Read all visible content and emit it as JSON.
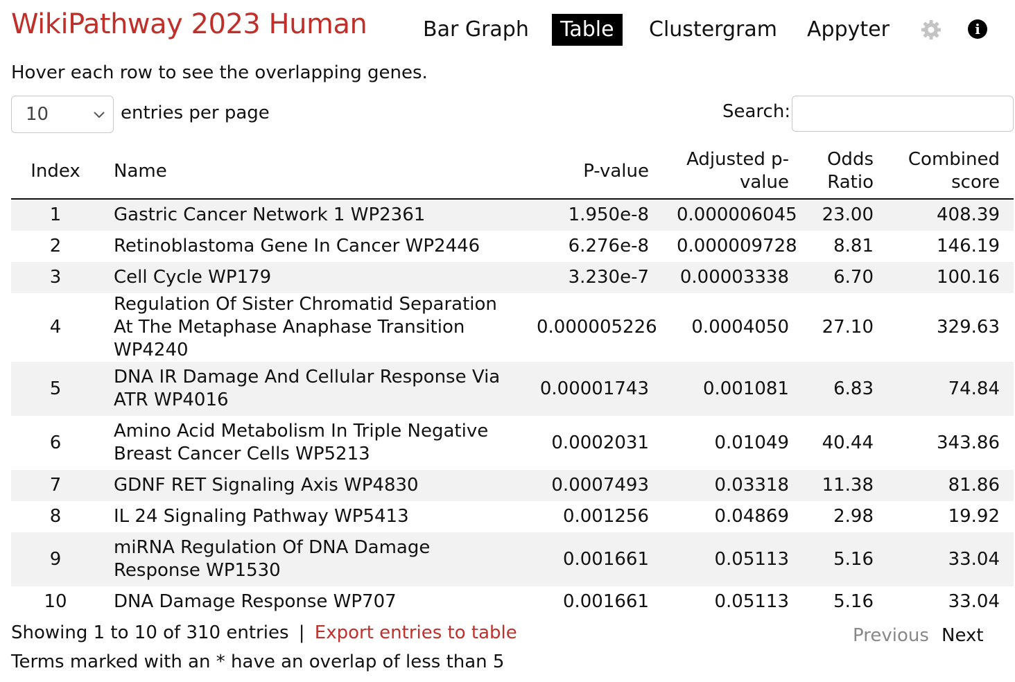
{
  "header": {
    "title": "WikiPathway 2023 Human",
    "title_color": "#c0302a",
    "nav": [
      {
        "label": "Bar Graph",
        "active": false
      },
      {
        "label": "Table",
        "active": true
      },
      {
        "label": "Clustergram",
        "active": false
      },
      {
        "label": "Appyter",
        "active": false
      }
    ],
    "icons": [
      "gear-icon",
      "info-icon"
    ]
  },
  "hint": "Hover each row to see the overlapping genes.",
  "controls": {
    "entries_value": "10",
    "entries_label": "entries per page",
    "search_label": "Search:",
    "search_value": ""
  },
  "table": {
    "columns": [
      "Index",
      "Name",
      "P-value",
      "Adjusted p-value",
      "Odds Ratio",
      "Combined score"
    ],
    "rows": [
      {
        "index": "1",
        "name": "Gastric Cancer Network 1 WP2361",
        "pvalue": "1.950e-8",
        "adj": "0.000006045",
        "odds": "23.00",
        "score": "408.39"
      },
      {
        "index": "2",
        "name": "Retinoblastoma Gene In Cancer WP2446",
        "pvalue": "6.276e-8",
        "adj": "0.000009728",
        "odds": "8.81",
        "score": "146.19"
      },
      {
        "index": "3",
        "name": "Cell Cycle WP179",
        "pvalue": "3.230e-7",
        "adj": "0.00003338",
        "odds": "6.70",
        "score": "100.16"
      },
      {
        "index": "4",
        "name": "Regulation Of Sister Chromatid Separation At The Metaphase Anaphase Transition WP4240",
        "pvalue": "0.000005226",
        "adj": "0.0004050",
        "odds": "27.10",
        "score": "329.63"
      },
      {
        "index": "5",
        "name": "DNA IR Damage And Cellular Response Via ATR WP4016",
        "pvalue": "0.00001743",
        "adj": "0.001081",
        "odds": "6.83",
        "score": "74.84"
      },
      {
        "index": "6",
        "name": "Amino Acid Metabolism In Triple Negative Breast Cancer Cells WP5213",
        "pvalue": "0.0002031",
        "adj": "0.01049",
        "odds": "40.44",
        "score": "343.86"
      },
      {
        "index": "7",
        "name": "GDNF RET Signaling Axis WP4830",
        "pvalue": "0.0007493",
        "adj": "0.03318",
        "odds": "11.38",
        "score": "81.86"
      },
      {
        "index": "8",
        "name": "IL 24 Signaling Pathway WP5413",
        "pvalue": "0.001256",
        "adj": "0.04869",
        "odds": "2.98",
        "score": "19.92"
      },
      {
        "index": "9",
        "name": "miRNA Regulation Of DNA Damage Response WP1530",
        "pvalue": "0.001661",
        "adj": "0.05113",
        "odds": "5.16",
        "score": "33.04"
      },
      {
        "index": "10",
        "name": "DNA Damage Response WP707",
        "pvalue": "0.001661",
        "adj": "0.05113",
        "odds": "5.16",
        "score": "33.04"
      }
    ]
  },
  "footer": {
    "showing": "Showing 1 to 10 of 310 entries",
    "separator": "|",
    "export_label": "Export entries to table",
    "note": "Terms marked with an * have an overlap of less than 5",
    "prev_label": "Previous",
    "next_label": "Next"
  }
}
